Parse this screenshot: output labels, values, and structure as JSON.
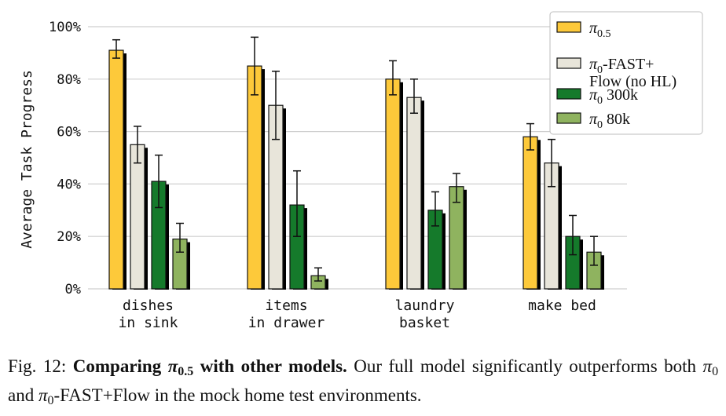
{
  "chart_data": {
    "type": "bar",
    "categories": [
      [
        "dishes",
        "in sink"
      ],
      [
        "items",
        "in drawer"
      ],
      [
        "laundry",
        "basket"
      ],
      [
        "make bed"
      ]
    ],
    "ylabel": "Average Task Progress",
    "ylim": [
      0,
      100
    ],
    "yticks": [
      "0%",
      "20%",
      "40%",
      "60%",
      "80%",
      "100%"
    ],
    "ytick_values": [
      0,
      20,
      40,
      60,
      80,
      100
    ],
    "grid": true,
    "legend_position": "top-right",
    "series": [
      {
        "legend": [
          {
            "base": "π",
            "sub": "0.5"
          }
        ],
        "color": "#FDC93A",
        "values": [
          91,
          85,
          80,
          58
        ],
        "err_low": [
          88,
          74,
          74,
          53
        ],
        "err_high": [
          95,
          96,
          87,
          63
        ]
      },
      {
        "legend": [
          {
            "base": "π",
            "sub": "0",
            "rest": "-FAST+"
          },
          {
            "base": "Flow (no HL)"
          }
        ],
        "color": "#E8E5DA",
        "values": [
          55,
          70,
          73,
          48
        ],
        "err_low": [
          48,
          57,
          67,
          39
        ],
        "err_high": [
          62,
          83,
          80,
          57
        ]
      },
      {
        "legend": [
          {
            "base": "π",
            "sub": "0",
            "rest": " 300k"
          }
        ],
        "color": "#157A2B",
        "values": [
          41,
          32,
          30,
          20
        ],
        "err_low": [
          31,
          20,
          24,
          13
        ],
        "err_high": [
          51,
          45,
          37,
          28
        ]
      },
      {
        "legend": [
          {
            "base": "π",
            "sub": "0",
            "rest": " 80k"
          }
        ],
        "color": "#8FB35F",
        "values": [
          19,
          5,
          39,
          14
        ],
        "err_low": [
          14,
          3,
          33,
          9
        ],
        "err_high": [
          25,
          8,
          44,
          20
        ]
      }
    ]
  },
  "caption": {
    "label": "Fig. 12:",
    "bold_pre": "Comparing",
    "bold_math": "π",
    "bold_math_sub": "0.5",
    "bold_post": "with other models.",
    "text1": "Our full model significantly outperforms both",
    "math1": "π",
    "math1_sub": "0",
    "text2": "and",
    "math2": "π",
    "math2_sub": "0",
    "text3": "-FAST+Flow in the mock home test environments."
  }
}
